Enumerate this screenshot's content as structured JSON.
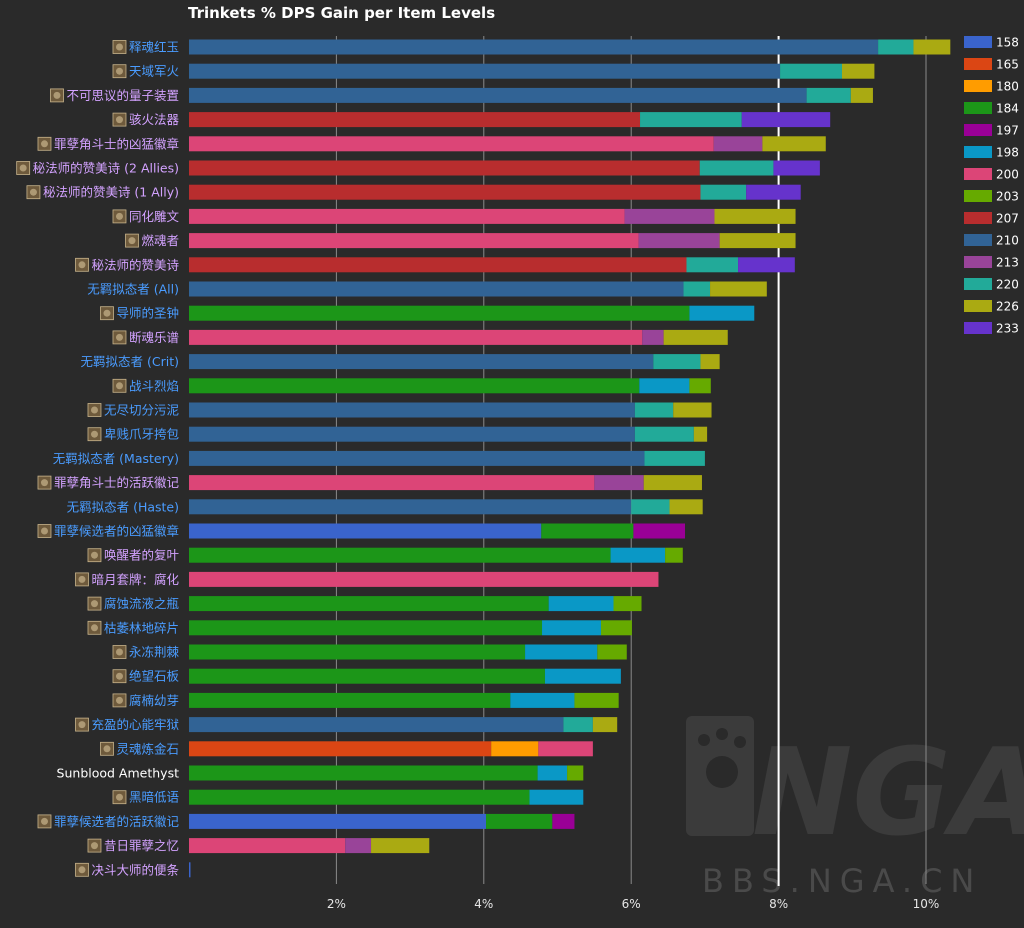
{
  "watermark": {
    "text": "BBS.NGA.CN",
    "logo_text": "NGA"
  },
  "chart_data": {
    "type": "bar",
    "orientation": "horizontal",
    "stacked": true,
    "title": "Trinkets % DPS Gain per Item Levels",
    "xlabel": "",
    "ylabel": "",
    "xlim": [
      0,
      10.4
    ],
    "xticks": [
      2,
      4,
      6,
      8,
      10
    ],
    "xtick_labels": [
      "2%",
      "4%",
      "6%",
      "8%",
      "10%"
    ],
    "reference_line": 8,
    "grid": true,
    "legend_position": "right",
    "levels": [
      "158",
      "165",
      "180",
      "184",
      "197",
      "198",
      "200",
      "203",
      "207",
      "210",
      "213",
      "220",
      "226",
      "233"
    ],
    "colors": {
      "158": "#3a64cc",
      "165": "#db4614",
      "180": "#ff9c00",
      "184": "#1c9618",
      "197": "#9a0096",
      "198": "#0a98c6",
      "200": "#dc4577",
      "203": "#66aa00",
      "207": "#b82d2e",
      "210": "#316395",
      "213": "#994499",
      "220": "#22aa99",
      "226": "#aaaa12",
      "233": "#6633cc"
    },
    "category_colors": {
      "legendary": "#d3a2ff",
      "rare": "#4a9cff",
      "common": "#ffffff",
      "icon_fill": "#6e5a3c",
      "icon_border": "#c8b48c"
    },
    "categories": [
      {
        "label": "释魂红玉",
        "icon": "red-gem-icon",
        "quality": "rare",
        "segments": [
          [
            "210",
            9.35
          ],
          [
            "220",
            0.48
          ],
          [
            "226",
            0.5
          ]
        ]
      },
      {
        "label": "天域军火",
        "icon": "blue-orb-icon",
        "quality": "rare",
        "segments": [
          [
            "210",
            8.02
          ],
          [
            "220",
            0.84
          ],
          [
            "226",
            0.44
          ]
        ]
      },
      {
        "label": "不可思议的量子装置",
        "icon": "bronze-face-icon",
        "quality": "legendary",
        "segments": [
          [
            "210",
            8.38
          ],
          [
            "220",
            0.6
          ],
          [
            "226",
            0.3
          ]
        ]
      },
      {
        "label": "骇火法器",
        "icon": "fire-burst-icon",
        "quality": "legendary",
        "segments": [
          [
            "207",
            6.12
          ],
          [
            "220",
            1.38
          ],
          [
            "233",
            1.2
          ]
        ]
      },
      {
        "label": "罪孽角斗士的凶猛徽章",
        "icon": "badge-icon",
        "quality": "legendary",
        "segments": [
          [
            "200",
            7.12
          ],
          [
            "213",
            0.66
          ],
          [
            "226",
            0.86
          ]
        ]
      },
      {
        "label": "秘法师的赞美诗 (2 Allies)",
        "icon": "hymn-chest-icon",
        "quality": "legendary",
        "segments": [
          [
            "207",
            6.93
          ],
          [
            "220",
            1.0
          ],
          [
            "233",
            0.63
          ]
        ]
      },
      {
        "label": "秘法师的赞美诗 (1 Ally)",
        "icon": "hymn-chest-icon",
        "quality": "legendary",
        "segments": [
          [
            "207",
            6.94
          ],
          [
            "220",
            0.62
          ],
          [
            "233",
            0.74
          ]
        ]
      },
      {
        "label": "同化雕文",
        "icon": "glyph-icon",
        "quality": "legendary",
        "segments": [
          [
            "200",
            5.91
          ],
          [
            "213",
            1.22
          ],
          [
            "226",
            1.1
          ]
        ]
      },
      {
        "label": "燃魂者",
        "icon": "soul-flame-icon",
        "quality": "legendary",
        "segments": [
          [
            "200",
            6.1
          ],
          [
            "213",
            1.1
          ],
          [
            "226",
            1.03
          ]
        ]
      },
      {
        "label": "秘法师的赞美诗",
        "icon": "hymn-chest-icon",
        "quality": "legendary",
        "segments": [
          [
            "207",
            6.75
          ],
          [
            "220",
            0.7
          ],
          [
            "233",
            0.77
          ]
        ]
      },
      {
        "label": "无羁拟态者 (All)",
        "icon": "",
        "quality": "rare",
        "segments": [
          [
            "210",
            6.71
          ],
          [
            "220",
            0.36
          ],
          [
            "226",
            0.77
          ]
        ]
      },
      {
        "label": "导师的圣钟",
        "icon": "bell-icon",
        "quality": "rare",
        "segments": [
          [
            "184",
            6.79
          ],
          [
            "198",
            0.88
          ]
        ]
      },
      {
        "label": "断魂乐谱",
        "icon": "scroll-icon",
        "quality": "legendary",
        "segments": [
          [
            "200",
            6.15
          ],
          [
            "213",
            0.29
          ],
          [
            "226",
            0.87
          ]
        ]
      },
      {
        "label": "无羁拟态者 (Crit)",
        "icon": "",
        "quality": "rare",
        "segments": [
          [
            "210",
            6.3
          ],
          [
            "220",
            0.64
          ],
          [
            "226",
            0.26
          ]
        ]
      },
      {
        "label": "战斗烈焰",
        "icon": "battle-flame-icon",
        "quality": "rare",
        "segments": [
          [
            "184",
            6.11
          ],
          [
            "198",
            0.68
          ],
          [
            "203",
            0.29
          ]
        ]
      },
      {
        "label": "无尽切分污泥",
        "icon": "ooze-icon",
        "quality": "rare",
        "segments": [
          [
            "210",
            6.05
          ],
          [
            "220",
            0.52
          ],
          [
            "226",
            0.52
          ]
        ]
      },
      {
        "label": "卑贱爪牙挎包",
        "icon": "satchel-icon",
        "quality": "rare",
        "segments": [
          [
            "210",
            6.05
          ],
          [
            "220",
            0.8
          ],
          [
            "226",
            0.18
          ]
        ]
      },
      {
        "label": "无羁拟态者 (Mastery)",
        "icon": "",
        "quality": "rare",
        "segments": [
          [
            "210",
            6.18
          ],
          [
            "220",
            0.82
          ]
        ]
      },
      {
        "label": "罪孽角斗士的活跃徽记",
        "icon": "insignia-icon",
        "quality": "legendary",
        "segments": [
          [
            "200",
            5.5
          ],
          [
            "213",
            0.67
          ],
          [
            "226",
            0.79
          ]
        ]
      },
      {
        "label": "无羁拟态者 (Haste)",
        "icon": "",
        "quality": "rare",
        "segments": [
          [
            "210",
            6.0
          ],
          [
            "220",
            0.52
          ],
          [
            "226",
            0.45
          ]
        ]
      },
      {
        "label": "罪孽候选者的凶猛徽章",
        "icon": "badge-icon",
        "quality": "rare",
        "segments": [
          [
            "158",
            4.78
          ],
          [
            "184",
            1.25
          ],
          [
            "197",
            0.7
          ]
        ]
      },
      {
        "label": "唤醒者的复叶",
        "icon": "leaf-icon",
        "quality": "legendary",
        "segments": [
          [
            "184",
            5.72
          ],
          [
            "198",
            0.74
          ],
          [
            "203",
            0.24
          ]
        ]
      },
      {
        "label": "暗月套牌：腐化",
        "icon": "darkmoon-deck-icon",
        "quality": "legendary",
        "segments": [
          [
            "200",
            6.37
          ]
        ]
      },
      {
        "label": "腐蚀流液之瓶",
        "icon": "vial-icon",
        "quality": "rare",
        "segments": [
          [
            "184",
            4.88
          ],
          [
            "198",
            0.88
          ],
          [
            "203",
            0.38
          ]
        ]
      },
      {
        "label": "枯萎林地碎片",
        "icon": "shard-icon",
        "quality": "rare",
        "segments": [
          [
            "184",
            4.79
          ],
          [
            "198",
            0.8
          ],
          [
            "203",
            0.42
          ]
        ]
      },
      {
        "label": "永冻荆棘",
        "icon": "thorn-icon",
        "quality": "rare",
        "segments": [
          [
            "184",
            4.56
          ],
          [
            "198",
            0.98
          ],
          [
            "203",
            0.4
          ]
        ]
      },
      {
        "label": "绝望石板",
        "icon": "slab-icon",
        "quality": "rare",
        "segments": [
          [
            "184",
            4.83
          ],
          [
            "198",
            1.03
          ]
        ]
      },
      {
        "label": "腐楠幼芽",
        "icon": "sprout-icon",
        "quality": "rare",
        "segments": [
          [
            "184",
            4.36
          ],
          [
            "198",
            0.87
          ],
          [
            "203",
            0.6
          ]
        ]
      },
      {
        "label": "充盈的心能牢狱",
        "icon": "prison-icon",
        "quality": "rare",
        "segments": [
          [
            "210",
            5.08
          ],
          [
            "220",
            0.4
          ],
          [
            "226",
            0.33
          ]
        ]
      },
      {
        "label": "灵魂炼金石",
        "icon": "alchemy-stone-icon",
        "quality": "rare",
        "segments": [
          [
            "165",
            4.1
          ],
          [
            "180",
            0.64
          ],
          [
            "200",
            0.74
          ]
        ]
      },
      {
        "label": "Sunblood Amethyst",
        "icon": "",
        "quality": "common",
        "segments": [
          [
            "184",
            4.73
          ],
          [
            "198",
            0.4
          ],
          [
            "203",
            0.22
          ]
        ]
      },
      {
        "label": "黑暗低语",
        "icon": "whisper-icon",
        "quality": "rare",
        "segments": [
          [
            "184",
            4.62
          ],
          [
            "198",
            0.73
          ]
        ]
      },
      {
        "label": "罪孽候选者的活跃徽记",
        "icon": "insignia-icon",
        "quality": "rare",
        "segments": [
          [
            "158",
            4.03
          ],
          [
            "184",
            0.9
          ],
          [
            "197",
            0.3
          ]
        ]
      },
      {
        "label": "昔日罪孽之忆",
        "icon": "memory-icon",
        "quality": "legendary",
        "segments": [
          [
            "200",
            2.12
          ],
          [
            "213",
            0.35
          ],
          [
            "226",
            0.79
          ]
        ]
      },
      {
        "label": "决斗大师的便条",
        "icon": "note-icon",
        "quality": "legendary",
        "segments": [
          [
            "158",
            0.02
          ]
        ]
      }
    ]
  }
}
